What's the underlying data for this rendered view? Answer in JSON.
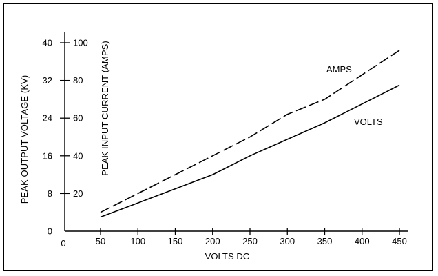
{
  "chart_data": {
    "type": "line",
    "title": "",
    "xlabel": "VOLTS DC",
    "ylabel_outer": "PEAK OUTPUT VOLTAGE (KV)",
    "ylabel_inner": "PEAK INPUT CURRENT (AMPS)",
    "x_ticks": [
      50,
      100,
      150,
      200,
      250,
      300,
      350,
      400,
      450
    ],
    "x_zero_label": "0",
    "xlim": [
      50,
      450
    ],
    "y_outer_ticks": [
      0,
      8,
      16,
      24,
      32,
      40
    ],
    "y_outer_lim": [
      0,
      40
    ],
    "y_inner_ticks": [
      20,
      40,
      60,
      80,
      100
    ],
    "y_inner_lim": [
      0,
      100
    ],
    "grid": false,
    "series": [
      {
        "name": "AMPS",
        "axis": "inner",
        "style": "dashed",
        "color": "#000000",
        "x": [
          50,
          100,
          150,
          200,
          250,
          300,
          350,
          400,
          450
        ],
        "y": [
          10,
          20,
          30,
          40,
          50,
          62,
          70,
          83,
          96
        ]
      },
      {
        "name": "VOLTS",
        "axis": "outer",
        "style": "solid",
        "color": "#000000",
        "x": [
          50,
          100,
          150,
          200,
          250,
          300,
          350,
          400,
          450
        ],
        "y": [
          3,
          6,
          9,
          12,
          16,
          19.5,
          23,
          27,
          31
        ]
      }
    ]
  }
}
